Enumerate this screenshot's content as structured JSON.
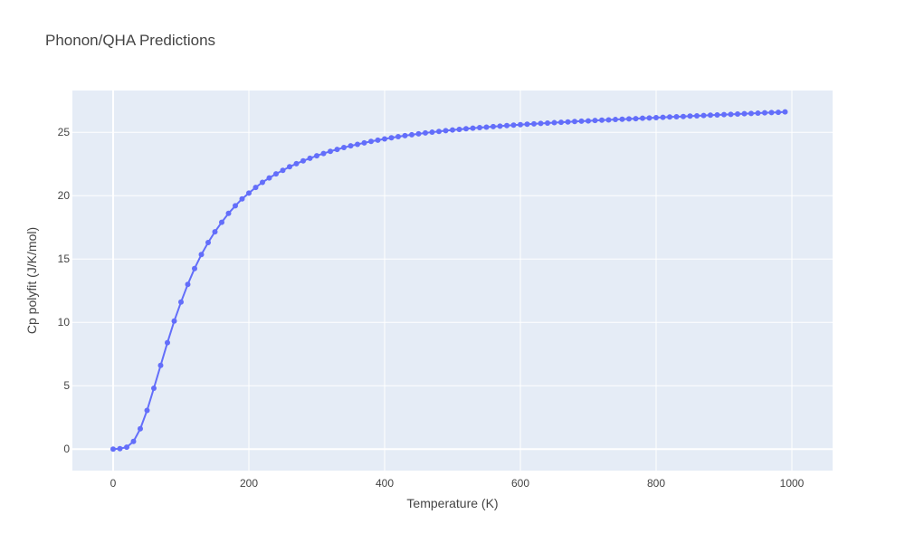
{
  "chart_data": {
    "type": "line",
    "title": "Phonon/QHA Predictions",
    "xlabel": "Temperature (K)",
    "ylabel": "Cp polyfit (J/K/mol)",
    "xlim": [
      -60,
      1060
    ],
    "ylim": [
      -1.7,
      28.3
    ],
    "xticks": [
      0,
      200,
      400,
      600,
      800,
      1000
    ],
    "yticks": [
      0,
      5,
      10,
      15,
      20,
      25
    ],
    "grid": true,
    "marker": "circle",
    "colors": {
      "series": "#636efa",
      "plot_bg": "#e5ecf6"
    },
    "series": [
      {
        "x": [
          0,
          10,
          20,
          30,
          40,
          50,
          60,
          70,
          80,
          90,
          100,
          110,
          120,
          130,
          140,
          150,
          160,
          170,
          180,
          190,
          200,
          210,
          220,
          230,
          240,
          250,
          260,
          270,
          280,
          290,
          300,
          310,
          320,
          330,
          340,
          350,
          360,
          370,
          380,
          390,
          400,
          410,
          420,
          430,
          440,
          450,
          460,
          470,
          480,
          490,
          500,
          510,
          520,
          530,
          540,
          550,
          560,
          570,
          580,
          590,
          600,
          610,
          620,
          630,
          640,
          650,
          660,
          670,
          680,
          690,
          700,
          710,
          720,
          730,
          740,
          750,
          760,
          770,
          780,
          790,
          800,
          810,
          820,
          830,
          840,
          850,
          860,
          870,
          880,
          890,
          900,
          910,
          920,
          930,
          940,
          950,
          960,
          970,
          980,
          990
        ],
        "y": [
          0.0,
          0.03,
          0.15,
          0.6,
          1.6,
          3.05,
          4.8,
          6.6,
          8.4,
          10.1,
          11.6,
          13.0,
          14.25,
          15.35,
          16.3,
          17.15,
          17.9,
          18.6,
          19.2,
          19.75,
          20.2,
          20.65,
          21.05,
          21.4,
          21.72,
          22.0,
          22.28,
          22.52,
          22.75,
          22.95,
          23.15,
          23.33,
          23.5,
          23.65,
          23.8,
          23.93,
          24.05,
          24.17,
          24.28,
          24.38,
          24.48,
          24.57,
          24.66,
          24.74,
          24.81,
          24.88,
          24.95,
          25.01,
          25.07,
          25.13,
          25.18,
          25.23,
          25.28,
          25.33,
          25.37,
          25.41,
          25.45,
          25.49,
          25.53,
          25.57,
          25.6,
          25.64,
          25.67,
          25.7,
          25.73,
          25.76,
          25.79,
          25.82,
          25.85,
          25.88,
          25.9,
          25.93,
          25.96,
          25.98,
          26.01,
          26.03,
          26.06,
          26.08,
          26.11,
          26.13,
          26.16,
          26.18,
          26.21,
          26.23,
          26.25,
          26.28,
          26.3,
          26.33,
          26.35,
          26.37,
          26.4,
          26.42,
          26.44,
          26.47,
          26.49,
          26.51,
          26.54,
          26.56,
          26.58,
          26.61
        ]
      }
    ]
  }
}
